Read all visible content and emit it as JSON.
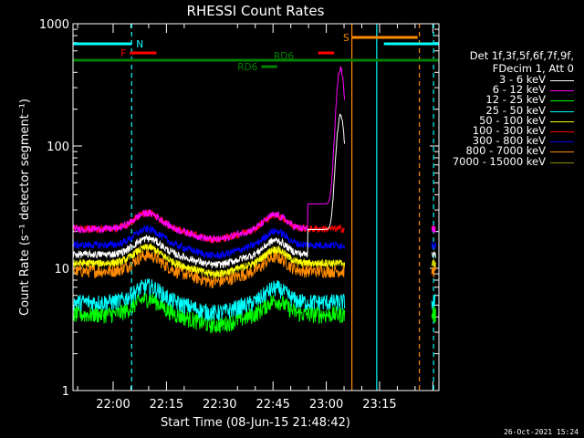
{
  "chart_data": {
    "type": "line",
    "title": "RHESSI Count Rates",
    "xlabel": "Start Time (08-Jun-15 21:48:42)",
    "ylabel": "Count Rate (s⁻¹ detector segment⁻¹)",
    "yscale": "log",
    "ylim": [
      1,
      1000
    ],
    "xlim_min_after_start": [
      0,
      103
    ],
    "y_tick_labels": [
      "1",
      "10",
      "100",
      "1000"
    ],
    "x_ticks": [
      {
        "label": "22:00",
        "t": 11.3
      },
      {
        "label": "22:15",
        "t": 26.3
      },
      {
        "label": "22:30",
        "t": 41.3
      },
      {
        "label": "22:45",
        "t": 56.3
      },
      {
        "label": "23:00",
        "t": 71.3
      },
      {
        "label": "23:15",
        "t": 86.3
      }
    ],
    "legend_header": [
      "Det 1f,3f,5f,6f,7f,9f,",
      "FDecim 1, Att 0"
    ],
    "series": [
      {
        "name": "3 - 6 keV",
        "color": "#ffffff"
      },
      {
        "name": "6 - 12 keV",
        "color": "#ff00ff"
      },
      {
        "name": "12 - 25 keV",
        "color": "#00ff00"
      },
      {
        "name": "25 - 50 keV",
        "color": "#00ffff"
      },
      {
        "name": "50 - 100 keV",
        "color": "#ffff00"
      },
      {
        "name": "100 - 300 keV",
        "color": "#ff0000"
      },
      {
        "name": "300 - 800 keV",
        "color": "#0000ff"
      },
      {
        "name": "800 - 7000 keV",
        "color": "#ff8c00"
      },
      {
        "name": "7000 - 15000 keV",
        "color": "#8b8b00"
      }
    ],
    "series_profile": {
      "data_end_min": 76.5,
      "resume_min": 101,
      "flare_peak_min": 75.3,
      "base_levels": {
        "3 - 6 keV": 13,
        "6 - 12 keV": 21,
        "12 - 25 keV": 4.2,
        "25 - 50 keV": 5.3,
        "50 - 100 keV": 11,
        "100 - 300 keV": 21,
        "300 - 800 keV": 15.5,
        "800 - 7000 keV": 9.5,
        "7000 - 15000 keV": 11
      },
      "peaks": {
        "6 - 12 keV": 420,
        "3 - 6 keV": 170
      }
    },
    "flag_bars": [
      {
        "label": "N",
        "color": "#00ffff",
        "segments": [
          [
            0,
            16.5
          ],
          [
            87.5,
            103
          ]
        ]
      },
      {
        "label": "F",
        "color": "#ff0000",
        "segments": [
          [
            16,
            23.5
          ]
        ]
      },
      {
        "label": "RD6",
        "color": "#008000",
        "segments": [
          [
            53,
            57.5
          ]
        ]
      },
      {
        "label": "RD6",
        "color": "#008000",
        "segments": [
          [
            0,
            103
          ]
        ]
      },
      {
        "label": "",
        "color": "#ff0000",
        "segments": [
          [
            69,
            73.5
          ]
        ]
      },
      {
        "label": "S",
        "color": "#ff8c00",
        "segments": [
          [
            78.5,
            97
          ]
        ]
      }
    ],
    "vertical_lines": [
      {
        "t": 16.5,
        "color": "#00ffff",
        "style": "dashed"
      },
      {
        "t": 78.5,
        "color": "#ff8c00",
        "style": "solid"
      },
      {
        "t": 85.5,
        "color": "#00ffff",
        "style": "solid"
      },
      {
        "t": 97.5,
        "color": "#ff8c00",
        "style": "dashed"
      },
      {
        "t": 101.5,
        "color": "#00ffff",
        "style": "dashed"
      }
    ]
  },
  "footer_stamp": "26-Oct-2021 15:24"
}
